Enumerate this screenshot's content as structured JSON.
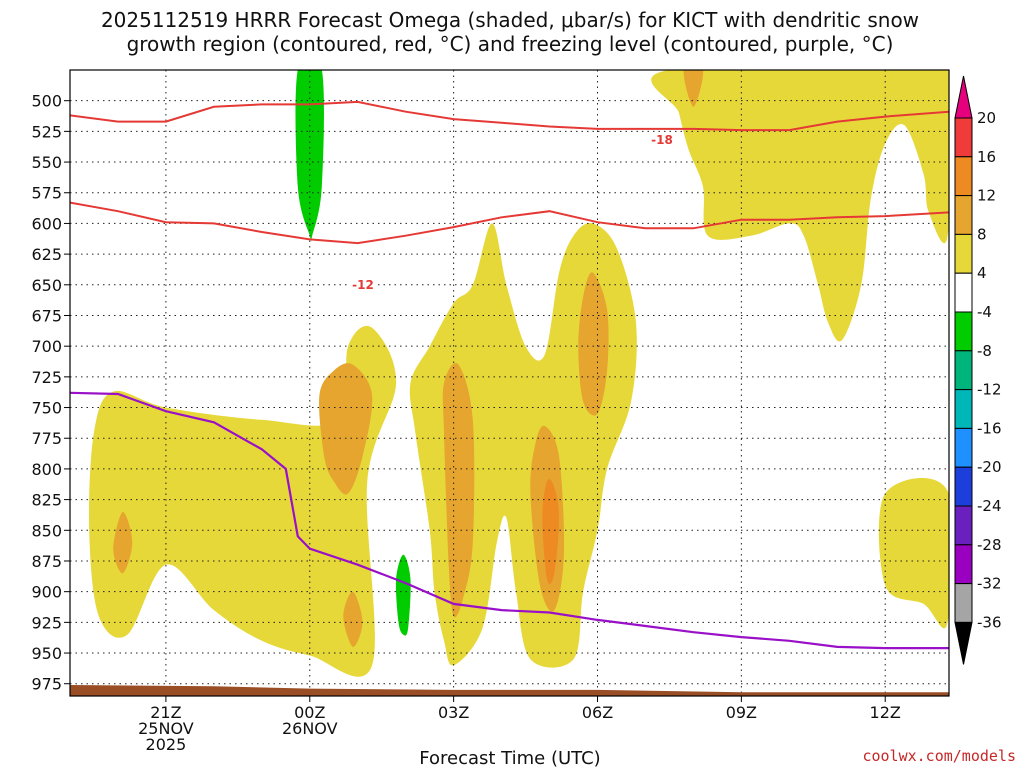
{
  "chart_data": {
    "type": "contour",
    "title_lines": [
      "2025112519 HRRR Forecast Omega (shaded, μbar/s) for KICT with dendritic snow",
      "growth region (contoured, red, °C) and freezing level (contoured, purple, °C)"
    ],
    "xlabel": "Forecast Time (UTC)",
    "credit": "coolwx.com/models",
    "x_range": [
      -5,
      13.33
    ],
    "y_range": [
      475,
      985
    ],
    "y_ticks": [
      500,
      525,
      550,
      575,
      600,
      625,
      650,
      675,
      700,
      725,
      750,
      775,
      800,
      825,
      850,
      875,
      900,
      925,
      950,
      975
    ],
    "x_ticks": [
      {
        "hour": -3,
        "lines": [
          "21Z",
          "25NOV",
          "2025"
        ]
      },
      {
        "hour": 0,
        "lines": [
          "00Z",
          "26NOV"
        ]
      },
      {
        "hour": 3,
        "lines": [
          "03Z"
        ]
      },
      {
        "hour": 6,
        "lines": [
          "06Z"
        ]
      },
      {
        "hour": 9,
        "lines": [
          "09Z"
        ]
      },
      {
        "hour": 12,
        "lines": [
          "12Z"
        ]
      }
    ],
    "grid": true,
    "colorbar": {
      "labels": [
        "20",
        "16",
        "12",
        "8",
        "4",
        "-4",
        "-8",
        "-12",
        "-16",
        "-20",
        "-24",
        "-28",
        "-32",
        "-36"
      ],
      "colors": [
        "#e6007e",
        "#f03b3b",
        "#ee8a22",
        "#e5a52f",
        "#e7d83a",
        "#ffffff",
        "#00cc00",
        "#00b57c",
        "#00b7b7",
        "#1e90ff",
        "#1c3fdc",
        "#6a1fbf",
        "#9900c0",
        "#a5a5a5",
        "#000000"
      ]
    },
    "isotherm_labels": {
      "minus18": "-18",
      "minus12": "-12"
    },
    "contour_colors": {
      "dgz": "#e53935",
      "freezing": "#9910c8",
      "ground": "#9a4e26"
    },
    "dgz_top_minus18": [
      [
        -5,
        512
      ],
      [
        -4,
        517
      ],
      [
        -3,
        517
      ],
      [
        -2,
        505
      ],
      [
        -1,
        503
      ],
      [
        0,
        503
      ],
      [
        1,
        501
      ],
      [
        2,
        509
      ],
      [
        3,
        515
      ],
      [
        4,
        518
      ],
      [
        5,
        521
      ],
      [
        6,
        523
      ],
      [
        7,
        523
      ],
      [
        8,
        523
      ],
      [
        9,
        524
      ],
      [
        10,
        524
      ],
      [
        11,
        517
      ],
      [
        12,
        513
      ],
      [
        13.33,
        509
      ]
    ],
    "dgz_bottom_minus12": [
      [
        -5,
        583
      ],
      [
        -4,
        590
      ],
      [
        -3,
        599
      ],
      [
        -2,
        600
      ],
      [
        -1,
        607
      ],
      [
        0,
        613
      ],
      [
        1,
        616
      ],
      [
        2,
        610
      ],
      [
        3,
        603
      ],
      [
        4,
        595
      ],
      [
        5,
        590
      ],
      [
        6,
        599
      ],
      [
        7,
        604
      ],
      [
        8,
        604
      ],
      [
        9,
        597
      ],
      [
        10,
        597
      ],
      [
        11,
        595
      ],
      [
        12,
        594
      ],
      [
        13.33,
        591
      ]
    ],
    "freezing_level": [
      [
        -5,
        738
      ],
      [
        -4,
        739
      ],
      [
        -3,
        753
      ],
      [
        -2,
        762
      ],
      [
        -1,
        784
      ],
      [
        -0.5,
        800
      ],
      [
        -0.25,
        855
      ],
      [
        0,
        865
      ],
      [
        1,
        878
      ],
      [
        2,
        893
      ],
      [
        3,
        910
      ],
      [
        4,
        915
      ],
      [
        5,
        917
      ],
      [
        6,
        923
      ],
      [
        7,
        928
      ],
      [
        8,
        933
      ],
      [
        9,
        937
      ],
      [
        10,
        940
      ],
      [
        11,
        945
      ],
      [
        12,
        946
      ],
      [
        13.33,
        946
      ]
    ],
    "ground_top": [
      [
        -5,
        976
      ],
      [
        -2,
        977
      ],
      [
        0,
        979
      ],
      [
        3,
        980
      ],
      [
        6,
        980
      ],
      [
        9,
        982
      ],
      [
        12,
        982
      ],
      [
        13.33,
        982
      ]
    ],
    "shaded_regions": [
      {
        "name": "yellow-plume-left",
        "level": "4-8",
        "points": [
          [
            -4.6,
            850
          ],
          [
            -4.5,
            770
          ],
          [
            -4.1,
            737
          ],
          [
            -3,
            750
          ],
          [
            -1,
            760
          ],
          [
            0.6,
            760
          ],
          [
            0.8,
            700
          ],
          [
            1.3,
            685
          ],
          [
            1.8,
            730
          ],
          [
            1.2,
            810
          ],
          [
            1.3,
            960
          ],
          [
            0,
            952
          ],
          [
            -1,
            940
          ],
          [
            -2,
            915
          ],
          [
            -3,
            878
          ],
          [
            -3.8,
            935
          ],
          [
            -4.4,
            920
          ]
        ]
      },
      {
        "name": "yellow-plume-mid",
        "level": "4-8",
        "points": [
          [
            2.2,
            770
          ],
          [
            2.1,
            730
          ],
          [
            2.5,
            700
          ],
          [
            3,
            665
          ],
          [
            3.4,
            650
          ],
          [
            3.8,
            600
          ],
          [
            4.1,
            650
          ],
          [
            4.5,
            700
          ],
          [
            4.9,
            707
          ],
          [
            5.2,
            640
          ],
          [
            5.5,
            610
          ],
          [
            5.9,
            600
          ],
          [
            6.4,
            620
          ],
          [
            6.8,
            680
          ],
          [
            6.7,
            745
          ],
          [
            6.2,
            800
          ],
          [
            6,
            850
          ],
          [
            5.7,
            900
          ],
          [
            5.5,
            955
          ],
          [
            4.6,
            955
          ],
          [
            4.3,
            900
          ],
          [
            4.1,
            840
          ],
          [
            3.9,
            860
          ],
          [
            3.6,
            930
          ],
          [
            3,
            960
          ],
          [
            2.8,
            940
          ],
          [
            2.6,
            900
          ],
          [
            2.5,
            850
          ]
        ]
      },
      {
        "name": "yellow-upper-right",
        "level": "4-8",
        "points": [
          [
            7.5,
            475
          ],
          [
            13.3,
            475
          ],
          [
            13.3,
            610
          ],
          [
            12.9,
            590
          ],
          [
            12.8,
            560
          ],
          [
            12.4,
            520
          ],
          [
            12,
            535
          ],
          [
            11.7,
            580
          ],
          [
            11.5,
            650
          ],
          [
            11.1,
            695
          ],
          [
            10.8,
            680
          ],
          [
            10.6,
            650
          ],
          [
            10.3,
            610
          ],
          [
            10,
            600
          ],
          [
            9.2,
            610
          ],
          [
            8.3,
            610
          ],
          [
            8.2,
            570
          ],
          [
            7.9,
            540
          ],
          [
            7.7,
            510
          ]
        ]
      },
      {
        "name": "yellow-lower-right",
        "level": "4-8",
        "points": [
          [
            12,
            820
          ],
          [
            13.3,
            818
          ],
          [
            13.3,
            925
          ],
          [
            12.8,
            910
          ],
          [
            12,
            895
          ]
        ]
      },
      {
        "name": "orange-cell-a",
        "level": "8-12",
        "points": [
          [
            0.2,
            740
          ],
          [
            0.5,
            720
          ],
          [
            0.9,
            715
          ],
          [
            1.3,
            740
          ],
          [
            1.1,
            790
          ],
          [
            0.8,
            820
          ],
          [
            0.5,
            810
          ],
          [
            0.3,
            790
          ]
        ]
      },
      {
        "name": "orange-cell-b",
        "level": "8-12",
        "points": [
          [
            -4.1,
            865
          ],
          [
            -3.9,
            835
          ],
          [
            -3.7,
            860
          ],
          [
            -3.9,
            885
          ]
        ]
      },
      {
        "name": "orange-cell-c",
        "level": "8-12",
        "points": [
          [
            0.7,
            920
          ],
          [
            0.9,
            900
          ],
          [
            1.1,
            925
          ],
          [
            0.9,
            945
          ]
        ]
      },
      {
        "name": "orange-cell-d",
        "level": "8-12",
        "points": [
          [
            2.8,
            770
          ],
          [
            2.8,
            730
          ],
          [
            3.1,
            715
          ],
          [
            3.4,
            760
          ],
          [
            3.4,
            860
          ],
          [
            3.2,
            905
          ],
          [
            3,
            920
          ],
          [
            2.9,
            880
          ]
        ]
      },
      {
        "name": "orange-cell-e",
        "level": "8-12",
        "points": [
          [
            4.6,
            820
          ],
          [
            4.7,
            780
          ],
          [
            4.9,
            765
          ],
          [
            5.2,
            790
          ],
          [
            5.3,
            870
          ],
          [
            5.1,
            915
          ],
          [
            4.8,
            895
          ]
        ]
      },
      {
        "name": "orange-cell-f",
        "level": "8-12",
        "points": [
          [
            5.6,
            700
          ],
          [
            5.7,
            660
          ],
          [
            5.9,
            640
          ],
          [
            6.2,
            670
          ],
          [
            6.2,
            720
          ],
          [
            6,
            755
          ],
          [
            5.7,
            745
          ]
        ]
      },
      {
        "name": "orange-cell-g",
        "level": "8-12",
        "points": [
          [
            7.8,
            475
          ],
          [
            8.2,
            475
          ],
          [
            8,
            505
          ]
        ]
      },
      {
        "name": "red-cell",
        "level": "12-16",
        "points": [
          [
            4.85,
            840
          ],
          [
            4.95,
            810
          ],
          [
            5.1,
            815
          ],
          [
            5.2,
            840
          ],
          [
            5.1,
            885
          ],
          [
            4.95,
            890
          ]
        ]
      },
      {
        "name": "green-column",
        "level": "-8--4",
        "points": [
          [
            -0.25,
            475
          ],
          [
            0.25,
            475
          ],
          [
            0.25,
            570
          ],
          [
            0.05,
            610
          ],
          [
            0,
            610
          ],
          [
            -0.25,
            570
          ]
        ]
      },
      {
        "name": "green-lens",
        "level": "-8--4",
        "points": [
          [
            1.8,
            890
          ],
          [
            1.95,
            870
          ],
          [
            2.1,
            890
          ],
          [
            2.05,
            930
          ],
          [
            1.95,
            935
          ],
          [
            1.85,
            925
          ]
        ]
      }
    ]
  }
}
